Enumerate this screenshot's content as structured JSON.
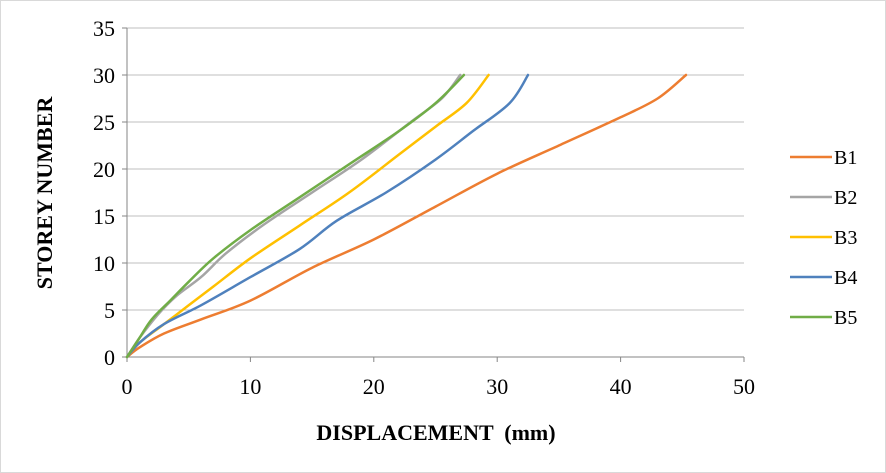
{
  "chart_data": {
    "type": "line",
    "title": "",
    "xlabel": "DISPLACEMENT  (mm)",
    "ylabel": "STOREY NUMBER",
    "xlim": [
      0,
      50
    ],
    "ylim": [
      0,
      35
    ],
    "xticks": [
      "0",
      "10",
      "20",
      "30",
      "40",
      "50"
    ],
    "yticks": [
      "0",
      "5",
      "10",
      "15",
      "20",
      "25",
      "30",
      "35"
    ],
    "grid": true,
    "legend_position": "right",
    "series": [
      {
        "name": "B1",
        "color": "#ed7d31",
        "points": [
          [
            0,
            0
          ],
          [
            1,
            1
          ],
          [
            3,
            2.5
          ],
          [
            6,
            4
          ],
          [
            10,
            6
          ],
          [
            15,
            9.5
          ],
          [
            20,
            12.5
          ],
          [
            25,
            16
          ],
          [
            30,
            19.5
          ],
          [
            35,
            22.5
          ],
          [
            40,
            25.5
          ],
          [
            43,
            27.5
          ],
          [
            45.3,
            30
          ]
        ]
      },
      {
        "name": "B2",
        "color": "#a5a5a5",
        "points": [
          [
            0,
            0
          ],
          [
            1,
            2
          ],
          [
            2.5,
            4.5
          ],
          [
            4,
            6.5
          ],
          [
            6,
            8.5
          ],
          [
            8,
            11
          ],
          [
            11,
            14
          ],
          [
            15,
            17.5
          ],
          [
            19,
            21
          ],
          [
            23,
            25
          ],
          [
            25.5,
            27.5
          ],
          [
            27,
            30
          ]
        ]
      },
      {
        "name": "B3",
        "color": "#ffc000",
        "points": [
          [
            0,
            0
          ],
          [
            1,
            1.5
          ],
          [
            3,
            3.5
          ],
          [
            5,
            5.5
          ],
          [
            7,
            7.5
          ],
          [
            10,
            10.5
          ],
          [
            14,
            14
          ],
          [
            18,
            17.5
          ],
          [
            22,
            21.5
          ],
          [
            25,
            24.5
          ],
          [
            27.5,
            27
          ],
          [
            29.3,
            30
          ]
        ]
      },
      {
        "name": "B4",
        "color": "#4f81bd",
        "points": [
          [
            0,
            0
          ],
          [
            1,
            1.5
          ],
          [
            3,
            3.5
          ],
          [
            6,
            5.5
          ],
          [
            10,
            8.5
          ],
          [
            14,
            11.5
          ],
          [
            17,
            14.5
          ],
          [
            21,
            17.5
          ],
          [
            25,
            21
          ],
          [
            28,
            24
          ],
          [
            31,
            27
          ],
          [
            32.5,
            30
          ]
        ]
      },
      {
        "name": "B5",
        "color": "#70ad47",
        "points": [
          [
            0,
            0
          ],
          [
            1,
            2
          ],
          [
            2,
            4
          ],
          [
            3.5,
            6
          ],
          [
            5,
            8
          ],
          [
            7,
            10.5
          ],
          [
            10,
            13.5
          ],
          [
            14,
            17
          ],
          [
            18,
            20.5
          ],
          [
            22,
            24
          ],
          [
            25,
            27
          ],
          [
            27.3,
            30
          ]
        ]
      }
    ]
  }
}
